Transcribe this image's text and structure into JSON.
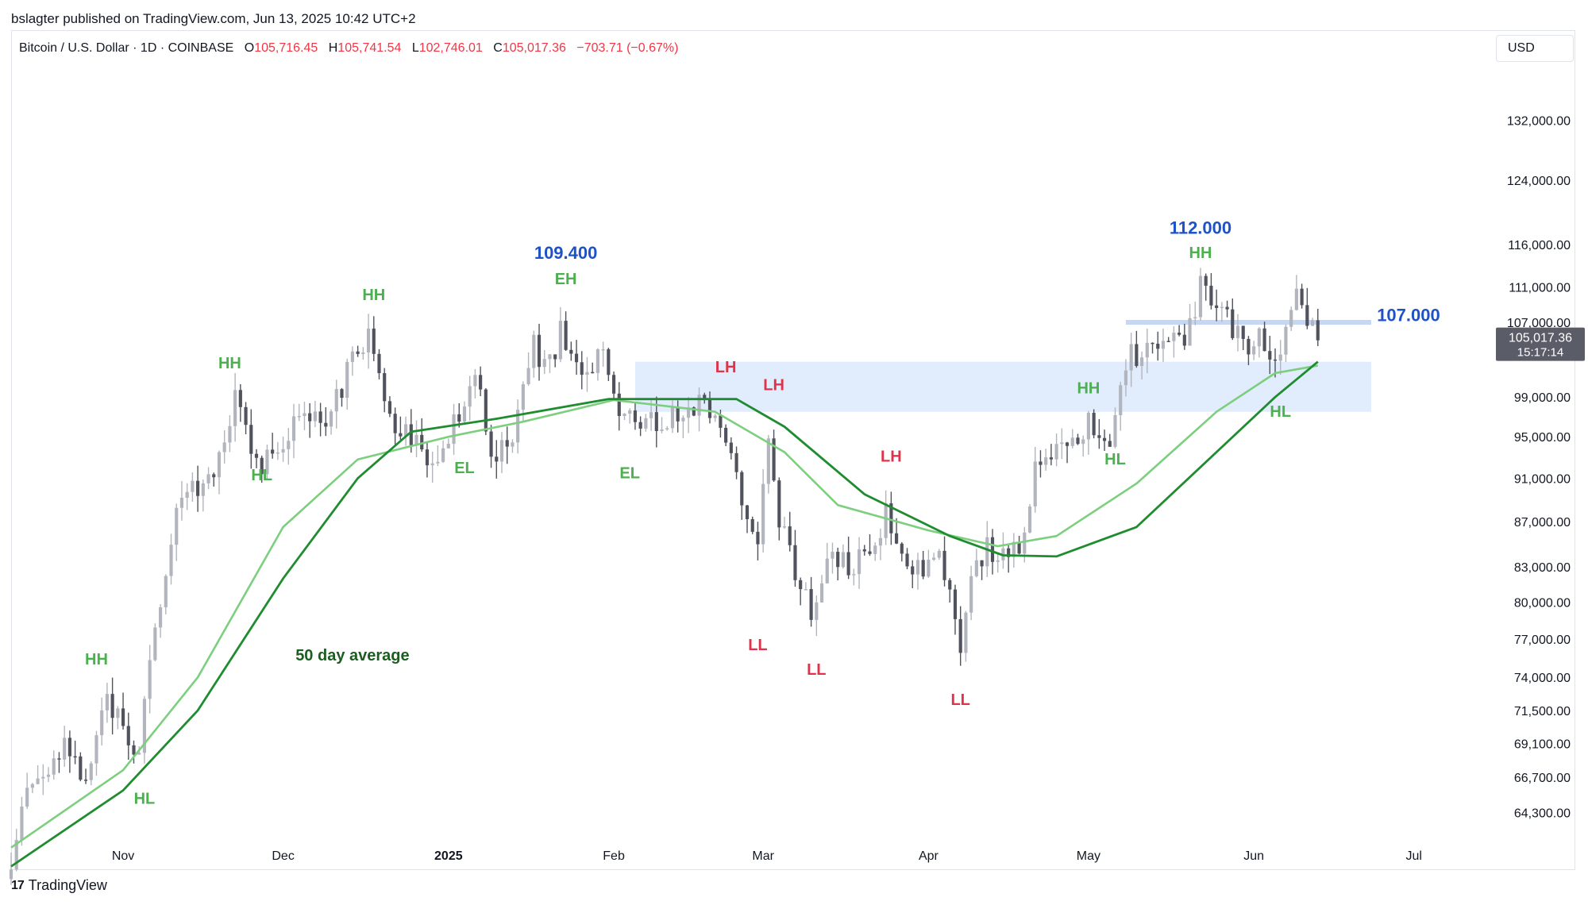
{
  "header": {
    "published_by": "bslagter published on TradingView.com, Jun 13, 2025 10:42 UTC+2"
  },
  "legend": {
    "symbol": "Bitcoin / U.S. Dollar · 1D · COINBASE",
    "open_label": "O",
    "open": "105,716.45",
    "high_label": "H",
    "high": "105,741.54",
    "low_label": "L",
    "low": "102,746.01",
    "close_label": "C",
    "close": "105,017.36",
    "change": "−703.71 (−0.67%)"
  },
  "currency_button": {
    "label": "USD"
  },
  "brand": {
    "name": "TradingView",
    "logo_text": "17"
  },
  "colors": {
    "up_candle": "#b2b5be",
    "down_candle": "#50535e",
    "ma50": "#1e8c2f",
    "ma_fast": "#7ccf7e",
    "zone": "#d7e5fc",
    "label_green": "#4caf50",
    "label_red": "#e0334a",
    "label_blue": "#1e53c8",
    "price_tag": "#5a5d68"
  },
  "chart_data": {
    "type": "candlestick",
    "y_scale": "log",
    "ylim": [
      62500,
      140000
    ],
    "x_range": [
      "2024-10-11",
      "2025-07-14"
    ],
    "y_ticks": [
      "132,000.00",
      "124,000.00",
      "116,000.00",
      "111,000.00",
      "107,000.00",
      "99,000.00",
      "95,000.00",
      "91,000.00",
      "87,000.00",
      "83,000.00",
      "80,000.00",
      "77,000.00",
      "74,000.00",
      "71,500.00",
      "69,100.00",
      "66,700.00",
      "64,300.00"
    ],
    "x_ticks": [
      {
        "label": "Nov",
        "date": "2024-11-01"
      },
      {
        "label": "Dec",
        "date": "2024-12-01"
      },
      {
        "label": "2025",
        "date": "2025-01-01",
        "bold": true
      },
      {
        "label": "Feb",
        "date": "2025-02-01"
      },
      {
        "label": "Mar",
        "date": "2025-03-01"
      },
      {
        "label": "Apr",
        "date": "2025-04-01"
      },
      {
        "label": "May",
        "date": "2025-05-01"
      },
      {
        "label": "Jun",
        "date": "2025-06-01"
      },
      {
        "label": "Jul",
        "date": "2025-07-01"
      }
    ],
    "price_anchors": [
      [
        "2024-10-11",
        60300
      ],
      [
        "2024-10-14",
        66000
      ],
      [
        "2024-10-21",
        68500
      ],
      [
        "2024-10-25",
        66600
      ],
      [
        "2024-10-29",
        72500
      ],
      [
        "2024-11-04",
        68300
      ],
      [
        "2024-11-06",
        75500
      ],
      [
        "2024-11-11",
        88500
      ],
      [
        "2024-11-13",
        90000
      ],
      [
        "2024-11-17",
        90500
      ],
      [
        "2024-11-22",
        98500
      ],
      [
        "2024-11-26",
        91900
      ],
      [
        "2024-12-05",
        97500
      ],
      [
        "2024-12-09",
        96500
      ],
      [
        "2024-12-17",
        106000
      ],
      [
        "2024-12-20",
        97500
      ],
      [
        "2024-12-30",
        92500
      ],
      [
        "2025-01-06",
        102000
      ],
      [
        "2025-01-09",
        92800
      ],
      [
        "2025-01-13",
        94500
      ],
      [
        "2025-01-17",
        104500
      ],
      [
        "2025-01-20",
        102000
      ],
      [
        "2025-01-22",
        106000
      ],
      [
        "2025-01-27",
        102000
      ],
      [
        "2025-01-30",
        104800
      ],
      [
        "2025-02-02",
        97500
      ],
      [
        "2025-02-08",
        96500
      ],
      [
        "2025-02-20",
        98500
      ],
      [
        "2025-02-25",
        88500
      ],
      [
        "2025-02-28",
        84500
      ],
      [
        "2025-03-02",
        94000
      ],
      [
        "2025-03-04",
        87000
      ],
      [
        "2025-03-10",
        79000
      ],
      [
        "2025-03-14",
        84000
      ],
      [
        "2025-03-18",
        82500
      ],
      [
        "2025-03-24",
        87500
      ],
      [
        "2025-03-28",
        84000
      ],
      [
        "2025-03-31",
        82500
      ],
      [
        "2025-04-02",
        85000
      ],
      [
        "2025-04-07",
        76500
      ],
      [
        "2025-04-09",
        83000
      ],
      [
        "2025-04-12",
        84500
      ],
      [
        "2025-04-18",
        84800
      ],
      [
        "2025-04-22",
        93500
      ],
      [
        "2025-04-26",
        94500
      ],
      [
        "2025-05-01",
        96500
      ],
      [
        "2025-05-05",
        94300
      ],
      [
        "2025-05-08",
        103000
      ],
      [
        "2025-05-15",
        103500
      ],
      [
        "2025-05-20",
        106500
      ],
      [
        "2025-05-22",
        111500
      ],
      [
        "2025-05-26",
        109000
      ],
      [
        "2025-05-30",
        104000
      ],
      [
        "2025-06-02",
        105500
      ],
      [
        "2025-06-05",
        101500
      ],
      [
        "2025-06-09",
        110000
      ],
      [
        "2025-06-12",
        105700
      ],
      [
        "2025-06-13",
        105017
      ]
    ],
    "ma50_anchors": [
      [
        "2024-10-11",
        60800
      ],
      [
        "2024-11-01",
        65800
      ],
      [
        "2024-11-15",
        71500
      ],
      [
        "2024-12-01",
        82000
      ],
      [
        "2024-12-15",
        91000
      ],
      [
        "2024-12-25",
        95500
      ],
      [
        "2025-01-10",
        96800
      ],
      [
        "2025-01-31",
        98800
      ],
      [
        "2025-02-15",
        98800
      ],
      [
        "2025-02-24",
        98800
      ],
      [
        "2025-03-05",
        96000
      ],
      [
        "2025-03-20",
        89500
      ],
      [
        "2025-04-05",
        85700
      ],
      [
        "2025-04-15",
        84000
      ],
      [
        "2025-04-25",
        83900
      ],
      [
        "2025-05-10",
        86500
      ],
      [
        "2025-05-25",
        93500
      ],
      [
        "2025-06-05",
        99000
      ],
      [
        "2025-06-13",
        102700
      ]
    ],
    "ma_fast_anchors": [
      [
        "2024-10-11",
        62000
      ],
      [
        "2024-11-01",
        67200
      ],
      [
        "2024-11-15",
        74000
      ],
      [
        "2024-12-01",
        86500
      ],
      [
        "2024-12-15",
        92800
      ],
      [
        "2025-01-01",
        95000
      ],
      [
        "2025-01-15",
        96500
      ],
      [
        "2025-02-01",
        98700
      ],
      [
        "2025-02-20",
        97500
      ],
      [
        "2025-03-05",
        93500
      ],
      [
        "2025-03-15",
        88500
      ],
      [
        "2025-04-01",
        86200
      ],
      [
        "2025-04-14",
        84800
      ],
      [
        "2025-04-25",
        85700
      ],
      [
        "2025-05-10",
        90500
      ],
      [
        "2025-05-25",
        97500
      ],
      [
        "2025-06-05",
        101500
      ],
      [
        "2025-06-13",
        102300
      ]
    ],
    "support_zone": {
      "from": "2025-02-05",
      "to": "2025-06-23",
      "low": 97500,
      "high": 102700
    },
    "resistance_line": {
      "from": "2025-05-08",
      "to": "2025-06-23",
      "value": 107000
    },
    "last_price": {
      "value": "105,017.36",
      "countdown": "15:17:14",
      "y": 105017
    },
    "annotations": [
      {
        "text": "HH",
        "color": "green",
        "date": "2024-10-27",
        "y": 75000
      },
      {
        "text": "HL",
        "color": "green",
        "date": "2024-11-05",
        "y": 64900
      },
      {
        "text": "HH",
        "color": "green",
        "date": "2024-11-21",
        "y": 102000
      },
      {
        "text": "HL",
        "color": "green",
        "date": "2024-11-27",
        "y": 90800
      },
      {
        "text": "HH",
        "color": "green",
        "date": "2024-12-18",
        "y": 109500
      },
      {
        "text": "EL",
        "color": "green",
        "date": "2025-01-04",
        "y": 91500
      },
      {
        "text": "EH",
        "color": "green",
        "date": "2025-01-23",
        "y": 111300
      },
      {
        "text": "109.400",
        "color": "blue",
        "date": "2025-01-23",
        "y": 114300,
        "size": 22
      },
      {
        "text": "EL",
        "color": "green",
        "date": "2025-02-04",
        "y": 91000
      },
      {
        "text": "LH",
        "color": "red",
        "date": "2025-02-22",
        "y": 101600
      },
      {
        "text": "LH",
        "color": "red",
        "date": "2025-03-03",
        "y": 99700
      },
      {
        "text": "LL",
        "color": "red",
        "date": "2025-02-28",
        "y": 76100
      },
      {
        "text": "LL",
        "color": "red",
        "date": "2025-03-11",
        "y": 74200
      },
      {
        "text": "LH",
        "color": "red",
        "date": "2025-03-25",
        "y": 92600
      },
      {
        "text": "LL",
        "color": "red",
        "date": "2025-04-07",
        "y": 71900
      },
      {
        "text": "HH",
        "color": "green",
        "date": "2025-05-01",
        "y": 99400
      },
      {
        "text": "HL",
        "color": "green",
        "date": "2025-05-06",
        "y": 92300
      },
      {
        "text": "HH",
        "color": "green",
        "date": "2025-05-22",
        "y": 114400
      },
      {
        "text": "112.000",
        "color": "blue",
        "date": "2025-05-22",
        "y": 117300,
        "size": 22
      },
      {
        "text": "HL",
        "color": "green",
        "date": "2025-06-06",
        "y": 97000
      },
      {
        "text": "107.000",
        "color": "blue",
        "date": "2025-06-30",
        "y": 107150,
        "size": 22
      },
      {
        "text": "50 day average",
        "color": "darkgreen",
        "date": "2024-12-14",
        "y": 75300,
        "size": 20,
        "anchor": "middle"
      }
    ]
  }
}
